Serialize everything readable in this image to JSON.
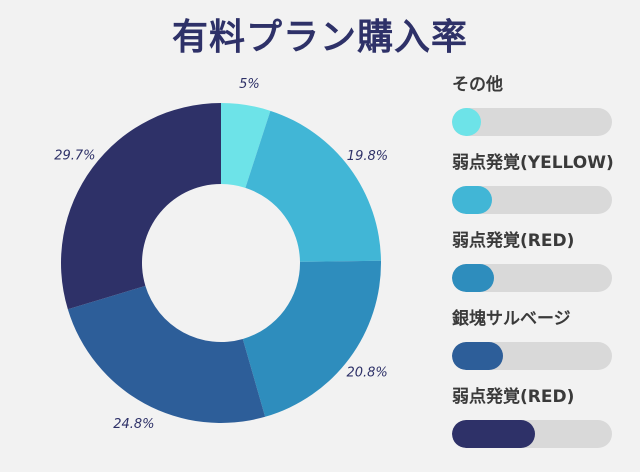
{
  "chart_data": {
    "type": "pie",
    "title": "有料プラン購入率",
    "categories": [
      "その他",
      "弱点発覚(YELLOW)",
      "弱点発覚(RED)",
      "銀塊サルベージ",
      "弱点発覚(RED)"
    ],
    "values": [
      5,
      19.8,
      20.8,
      24.8,
      29.7
    ],
    "value_labels": [
      "5%",
      "19.8%",
      "20.8%",
      "24.8%",
      "29.7%"
    ],
    "colors": [
      "#6de3e8",
      "#41b6d6",
      "#2e8dbd",
      "#2d5e99",
      "#2e3168"
    ],
    "legend_fill": [
      0.18,
      0.25,
      0.26,
      0.32,
      0.52
    ],
    "legend_position": "right",
    "donut": true
  }
}
